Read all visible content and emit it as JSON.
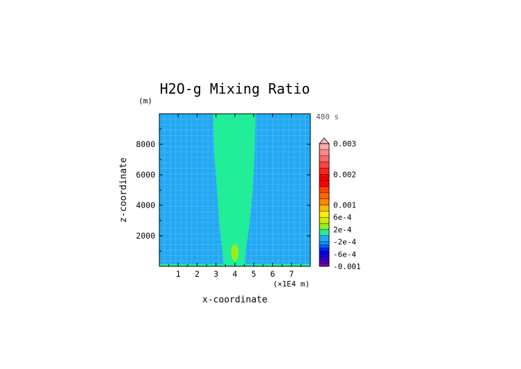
{
  "chart_data": {
    "type": "heatmap",
    "title": "H2O-g Mixing Ratio",
    "xlabel": "x-coordinate",
    "ylabel": "z-coordinate",
    "y_unit": "(m)",
    "x_unit": "(×1E4 m)",
    "time_label": "480 s",
    "xlim": [
      0,
      8
    ],
    "ylim": [
      0,
      10000
    ],
    "x_ticks": [
      1,
      2,
      3,
      4,
      5,
      6,
      7
    ],
    "x_tick_labels": [
      "1",
      "2",
      "3",
      "4",
      "5",
      "6",
      "7"
    ],
    "y_ticks": [
      2000,
      4000,
      6000,
      8000
    ],
    "y_tick_labels": [
      "2000",
      "4000",
      "6000",
      "8000"
    ],
    "background_level": "-2e-4 to 0",
    "features": [
      {
        "kind": "plume",
        "level": "0 to 2e-4",
        "center_x": 3.95,
        "width_profile": [
          {
            "z": 0,
            "x_left": 3.4,
            "x_right": 4.5
          },
          {
            "z": 800,
            "x_left": 3.35,
            "x_right": 4.55
          },
          {
            "z": 2500,
            "x_left": 3.2,
            "x_right": 4.75
          },
          {
            "z": 5000,
            "x_left": 3.05,
            "x_right": 4.95
          },
          {
            "z": 7500,
            "x_left": 2.9,
            "x_right": 5.05
          },
          {
            "z": 10000,
            "x_left": 2.85,
            "x_right": 5.1
          }
        ]
      },
      {
        "kind": "blob",
        "level": "2e-4 to 4e-4",
        "center_x": 4.0,
        "center_z": 900,
        "half_width_x": 0.2,
        "half_height_z": 550
      },
      {
        "kind": "surface-layer",
        "level": "0 to 2e-4",
        "z_top": 150
      }
    ],
    "colorbar": {
      "levels": [
        -0.001,
        -0.0009,
        -0.0008,
        -0.0007,
        -0.0006,
        -0.0005,
        -0.0004,
        -0.0003,
        -0.0002,
        0,
        0.0002,
        0.0004,
        0.0006,
        0.0008,
        0.001,
        0.0012,
        0.0014,
        0.0016,
        0.0018,
        0.002,
        0.0022,
        0.0024,
        0.0026,
        0.0028,
        0.003
      ],
      "colors": [
        "#7700aa",
        "#5500bb",
        "#3300cc",
        "#2200dd",
        "#0000ee",
        "#0022ff",
        "#0066ff",
        "#0099ff",
        "#22a8f4",
        "#22ee99",
        "#99ee22",
        "#ccee00",
        "#ffee00",
        "#ffbb00",
        "#ff8800",
        "#ff6600",
        "#ff4400",
        "#ff0000",
        "#ee0000",
        "#ff2222",
        "#ff4444",
        "#ff6666",
        "#ff8888",
        "#ffaaaa"
      ],
      "extend_top_color": "#ffbbbb",
      "labels": [
        "0.003",
        "0.002",
        "0.001",
        "6e-4",
        "2e-4",
        "-2e-4",
        "-6e-4",
        "-0.001"
      ],
      "label_values": [
        0.003,
        0.002,
        0.001,
        0.0006,
        0.0002,
        -0.0002,
        -0.0006,
        -0.001
      ]
    }
  }
}
